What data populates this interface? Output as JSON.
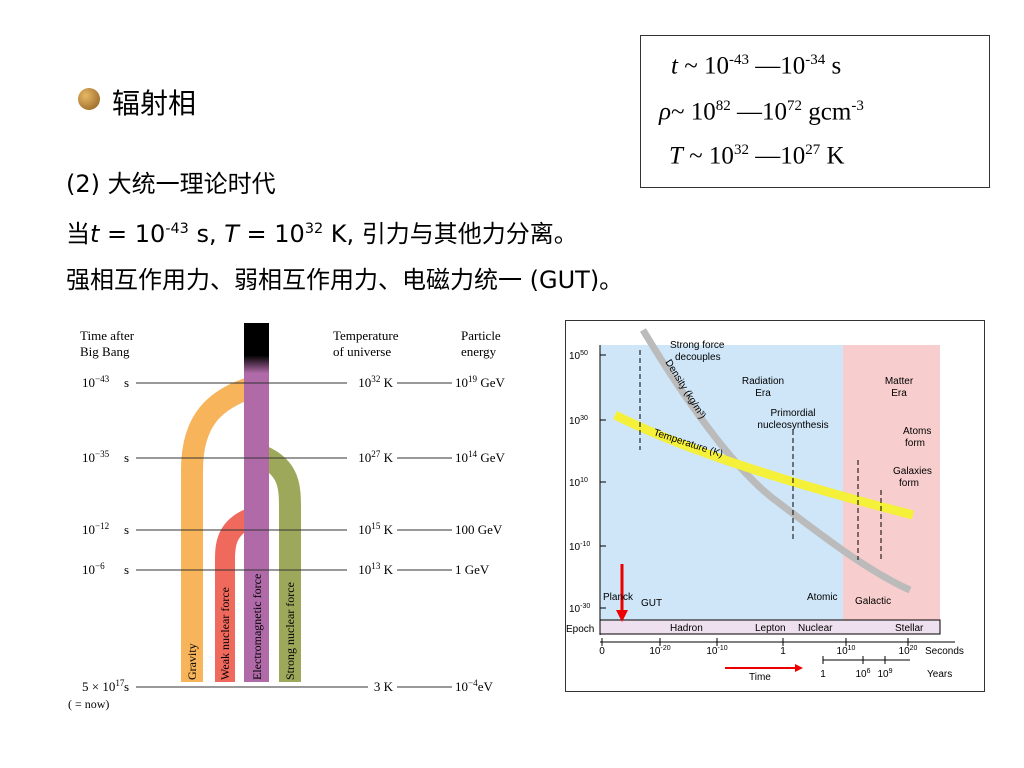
{
  "bullet": "辐射相",
  "box": {
    "lines": [
      [
        "t",
        " ~ 10",
        "-43",
        " ―10",
        "-34",
        " s"
      ],
      [
        "ρ",
        "~ 10",
        "82",
        " ―10",
        "72",
        " gcm",
        "-3"
      ],
      [
        "T",
        " ~ 10",
        "32",
        " ―10",
        "27",
        " K"
      ]
    ]
  },
  "body": {
    "heading": "(2) 大统一理论时代",
    "line2": [
      "当",
      "t",
      " = 10",
      "-43",
      " s, ",
      "T",
      " = 10",
      "32",
      " K, 引力与其他力分离。"
    ],
    "line3": "强相互作用力、弱相互作用力、电磁力统一 (GUT)。"
  },
  "left_figure": {
    "headers": {
      "time": [
        "Time after",
        "Big Bang"
      ],
      "temperature": [
        "Temperature",
        "of universe"
      ],
      "energy": [
        "Particle",
        "energy"
      ]
    },
    "rows": [
      {
        "time": [
          "10",
          "−43",
          "s"
        ],
        "temperature": [
          "10",
          "32",
          " K"
        ],
        "energy": [
          "10",
          "19",
          " GeV"
        ]
      },
      {
        "time": [
          "10",
          "−35",
          "s"
        ],
        "temperature": [
          "10",
          "27",
          " K"
        ],
        "energy": [
          "10",
          "14",
          " GeV"
        ]
      },
      {
        "time": [
          "10",
          "−12",
          "s"
        ],
        "temperature": [
          "10",
          "15",
          " K"
        ],
        "energy": [
          "100 GeV"
        ]
      },
      {
        "time": [
          "10",
          "−6",
          "s"
        ],
        "temperature": [
          "10",
          "13",
          " K"
        ],
        "energy": [
          "1 GeV"
        ]
      },
      {
        "time": [
          "5 × 10",
          "17",
          "s"
        ],
        "temperature": [
          "3 K"
        ],
        "energy": [
          "10",
          "−4",
          "eV"
        ]
      }
    ],
    "now": "( = now)",
    "forces": [
      "Gravity",
      "Weak nuclear force",
      "Electromagnetic force",
      "Strong nuclear force"
    ]
  },
  "right_figure": {
    "y_labels": [
      [
        "10",
        "50"
      ],
      [
        "10",
        "30"
      ],
      [
        "10",
        "10"
      ],
      [
        "10",
        "-10"
      ],
      [
        "10",
        "-30"
      ]
    ],
    "annotations": {
      "strong": [
        "Strong force",
        "decouples"
      ],
      "density": "Density (kg/m³)",
      "temperature": "Temperature (K)",
      "radiation": [
        "Radiation",
        "Era"
      ],
      "matter": [
        "Matter",
        "Era"
      ],
      "nucleo": [
        "Primordial",
        "nucleosynthesis"
      ],
      "atoms": [
        "Atoms",
        "form"
      ],
      "galaxies": [
        "Galaxies",
        "form"
      ],
      "planck": "Planck",
      "gut": "GUT",
      "atomic": "Atomic",
      "galactic": "Galactic"
    },
    "epochs": [
      "Epoch",
      "Hadron",
      "Lepton",
      "Nuclear",
      "Stellar"
    ],
    "seconds_labels": [
      [
        "0"
      ],
      [
        "10",
        "-20"
      ],
      [
        "10",
        "-10"
      ],
      [
        "1"
      ],
      [
        "10",
        "10"
      ],
      [
        "10",
        "20"
      ]
    ],
    "seconds": "Seconds",
    "years_labels": [
      [
        "1"
      ],
      [
        "10",
        "6"
      ],
      [
        "10",
        "9"
      ]
    ],
    "years": "Years",
    "time": "Time"
  }
}
